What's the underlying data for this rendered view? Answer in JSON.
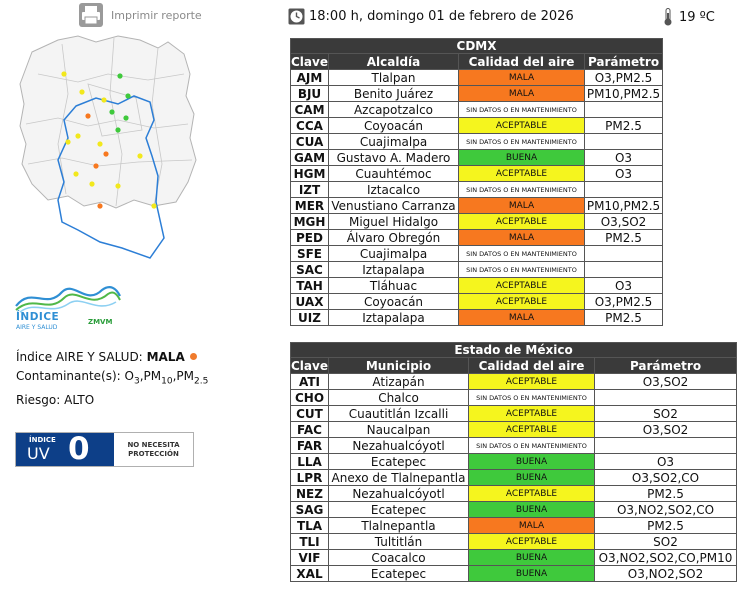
{
  "print": {
    "label": "Imprimir reporte"
  },
  "header": {
    "datetime": "18:00 h, domingo 01 de febrero de 2026",
    "temperature": "19 ºC"
  },
  "colors": {
    "mala": "#f7781f",
    "aceptable": "#f5f51e",
    "buena": "#3fc93c",
    "sin_datos": "#ffffff",
    "header_bg": "#3a3a3a",
    "uv_blue": "#0d3f88"
  },
  "logo": {
    "title": "ÍNDICE",
    "subtitle": "AIRE Y SALUD",
    "brand": "ZMVM"
  },
  "summary": {
    "indice_label": "Índice AIRE Y SALUD:",
    "indice_value": "MALA",
    "contaminantes_label": "Contaminante(s):",
    "riesgo": "Riesgo: ALTO"
  },
  "uv": {
    "label1": "ÍNDICE",
    "label2": "UV",
    "value": "0",
    "message_line1": "NO NECESITA",
    "message_line2": "PROTECCIÓN"
  },
  "cdmx": {
    "title": "CDMX",
    "headers": [
      "Clave",
      "Alcaldía",
      "Calidad del aire",
      "Parámetro"
    ],
    "rows": [
      {
        "clave": "AJM",
        "name": "Tlalpan",
        "calidad": "MALA",
        "level": "mala",
        "param": "O3,PM2.5"
      },
      {
        "clave": "BJU",
        "name": "Benito Juárez",
        "calidad": "MALA",
        "level": "mala",
        "param": "PM10,PM2.5"
      },
      {
        "clave": "CAM",
        "name": "Azcapotzalco",
        "calidad": "SIN DATOS O EN MANTENIMIENTO",
        "level": "sin_datos",
        "param": ""
      },
      {
        "clave": "CCA",
        "name": "Coyoacán",
        "calidad": "ACEPTABLE",
        "level": "aceptable",
        "param": "PM2.5"
      },
      {
        "clave": "CUA",
        "name": "Cuajimalpa",
        "calidad": "SIN DATOS O EN MANTENIMIENTO",
        "level": "sin_datos",
        "param": ""
      },
      {
        "clave": "GAM",
        "name": "Gustavo A. Madero",
        "calidad": "BUENA",
        "level": "buena",
        "param": "O3"
      },
      {
        "clave": "HGM",
        "name": "Cuauhtémoc",
        "calidad": "ACEPTABLE",
        "level": "aceptable",
        "param": "O3"
      },
      {
        "clave": "IZT",
        "name": "Iztacalco",
        "calidad": "SIN DATOS O EN MANTENIMIENTO",
        "level": "sin_datos",
        "param": ""
      },
      {
        "clave": "MER",
        "name": "Venustiano Carranza",
        "calidad": "MALA",
        "level": "mala",
        "param": "PM10,PM2.5"
      },
      {
        "clave": "MGH",
        "name": "Miguel Hidalgo",
        "calidad": "ACEPTABLE",
        "level": "aceptable",
        "param": "O3,SO2"
      },
      {
        "clave": "PED",
        "name": "Álvaro Obregón",
        "calidad": "MALA",
        "level": "mala",
        "param": "PM2.5"
      },
      {
        "clave": "SFE",
        "name": "Cuajimalpa",
        "calidad": "SIN DATOS O EN MANTENIMIENTO",
        "level": "sin_datos",
        "param": ""
      },
      {
        "clave": "SAC",
        "name": "Iztapalapa",
        "calidad": "SIN DATOS O EN MANTENIMIENTO",
        "level": "sin_datos",
        "param": ""
      },
      {
        "clave": "TAH",
        "name": "Tláhuac",
        "calidad": "ACEPTABLE",
        "level": "aceptable",
        "param": "O3"
      },
      {
        "clave": "UAX",
        "name": "Coyoacán",
        "calidad": "ACEPTABLE",
        "level": "aceptable",
        "param": "O3,PM2.5"
      },
      {
        "clave": "UIZ",
        "name": "Iztapalapa",
        "calidad": "MALA",
        "level": "mala",
        "param": "PM2.5"
      }
    ]
  },
  "edomex": {
    "title": "Estado de México",
    "headers": [
      "Clave",
      "Municipio",
      "Calidad del aire",
      "Parámetro"
    ],
    "rows": [
      {
        "clave": "ATI",
        "name": "Atizapán",
        "calidad": "ACEPTABLE",
        "level": "aceptable",
        "param": "O3,SO2"
      },
      {
        "clave": "CHO",
        "name": "Chalco",
        "calidad": "SIN DATOS O EN MANTENIMIENTO",
        "level": "sin_datos",
        "param": ""
      },
      {
        "clave": "CUT",
        "name": "Cuautitlán Izcalli",
        "calidad": "ACEPTABLE",
        "level": "aceptable",
        "param": "SO2"
      },
      {
        "clave": "FAC",
        "name": "Naucalpan",
        "calidad": "ACEPTABLE",
        "level": "aceptable",
        "param": "O3,SO2"
      },
      {
        "clave": "FAR",
        "name": "Nezahualcóyotl",
        "calidad": "SIN DATOS O EN MANTENIMIENTO",
        "level": "sin_datos",
        "param": ""
      },
      {
        "clave": "LLA",
        "name": "Ecatepec",
        "calidad": "BUENA",
        "level": "buena",
        "param": "O3"
      },
      {
        "clave": "LPR",
        "name": "Anexo de Tlalnepantla",
        "calidad": "BUENA",
        "level": "buena",
        "param": "O3,SO2,CO"
      },
      {
        "clave": "NEZ",
        "name": "Nezahualcóyotl",
        "calidad": "ACEPTABLE",
        "level": "aceptable",
        "param": "PM2.5"
      },
      {
        "clave": "SAG",
        "name": "Ecatepec",
        "calidad": "BUENA",
        "level": "buena",
        "param": "O3,NO2,SO2,CO"
      },
      {
        "clave": "TLA",
        "name": "Tlalnepantla",
        "calidad": "MALA",
        "level": "mala",
        "param": "PM2.5"
      },
      {
        "clave": "TLI",
        "name": "Tultitlán",
        "calidad": "ACEPTABLE",
        "level": "aceptable",
        "param": "SO2"
      },
      {
        "clave": "VIF",
        "name": "Coacalco",
        "calidad": "BUENA",
        "level": "buena",
        "param": "O3,NO2,SO2,CO,PM10"
      },
      {
        "clave": "XAL",
        "name": "Ecatepec",
        "calidad": "BUENA",
        "level": "buena",
        "param": "O3,NO2,SO2"
      }
    ]
  }
}
